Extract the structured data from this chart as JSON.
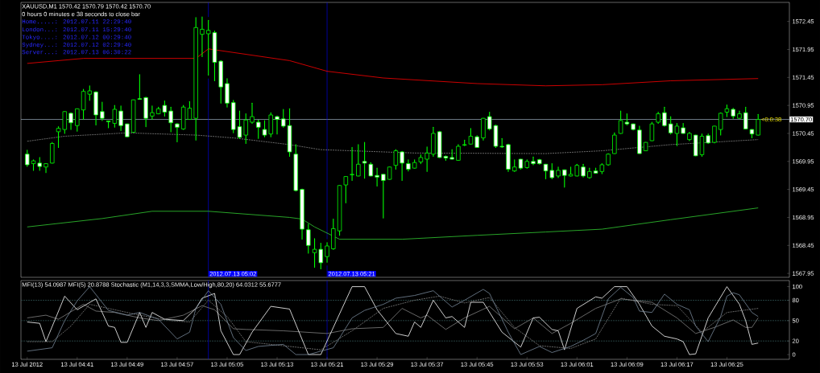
{
  "chart_data": [
    {
      "type": "candlestick",
      "title": "XAUUSD,M1  1570.42 1570.79 1570.42 1570.70",
      "subtitle": "0 hours 0 minutes e 38 seconds to close bar",
      "color": "#00ff00",
      "annotations": [
        "Home.....: 2012.07.11 22:29:40",
        "London...: 2012.07.11 15:29:40",
        "Tokyo....: 2012.07.12 00:29:40",
        "Sydney...: 2012.07.12 02:29:40",
        "Server...: 2012.07.13 06:30:22",
        {
          "text": "<0:0:38",
          "x": "2012-07-13T06:30",
          "y": 1570.7
        }
      ],
      "xlim": [
        "2012-07-13T04:32",
        "2012-07-13T06:35"
      ],
      "ylim": [
        1567.88,
        1572.79
      ],
      "yticks": [
        1567.95,
        1568.45,
        1568.95,
        1569.45,
        1569.95,
        1570.45,
        1570.95,
        1571.45,
        1571.95,
        1572.45
      ],
      "tick_labels": "y",
      "ref_lines": [
        {
          "axis": "y",
          "value": 1570.7,
          "label": "1570.70",
          "color": "#8c9bab"
        },
        {
          "axis": "x",
          "value": "2012-07-13T05:02",
          "label": "2012.07.13 05:02",
          "color": "#0000ff"
        },
        {
          "axis": "x",
          "value": "2012-07-13T05:21",
          "label": "2012.07.13 05:21",
          "color": "#0000ff"
        }
      ],
      "x": [
        "2012-07-13T04:33",
        "2012-07-13T04:34",
        "2012-07-13T04:35",
        "2012-07-13T04:36",
        "2012-07-13T04:37",
        "2012-07-13T04:38",
        "2012-07-13T04:39",
        "2012-07-13T04:40",
        "2012-07-13T04:41",
        "2012-07-13T04:42",
        "2012-07-13T04:43",
        "2012-07-13T04:44",
        "2012-07-13T04:45",
        "2012-07-13T04:46",
        "2012-07-13T04:47",
        "2012-07-13T04:48",
        "2012-07-13T04:49",
        "2012-07-13T04:50",
        "2012-07-13T04:51",
        "2012-07-13T04:52",
        "2012-07-13T04:53",
        "2012-07-13T04:54",
        "2012-07-13T04:55",
        "2012-07-13T04:56",
        "2012-07-13T04:57",
        "2012-07-13T04:58",
        "2012-07-13T04:59",
        "2012-07-13T05:00",
        "2012-07-13T05:01",
        "2012-07-13T05:02",
        "2012-07-13T05:03",
        "2012-07-13T05:04",
        "2012-07-13T05:05",
        "2012-07-13T05:06",
        "2012-07-13T05:07",
        "2012-07-13T05:08",
        "2012-07-13T05:09",
        "2012-07-13T05:10",
        "2012-07-13T05:11",
        "2012-07-13T05:12",
        "2012-07-13T05:13",
        "2012-07-13T05:14",
        "2012-07-13T05:15",
        "2012-07-13T05:16",
        "2012-07-13T05:17",
        "2012-07-13T05:18",
        "2012-07-13T05:19",
        "2012-07-13T05:20",
        "2012-07-13T05:21",
        "2012-07-13T05:22",
        "2012-07-13T05:23",
        "2012-07-13T05:24",
        "2012-07-13T05:25",
        "2012-07-13T05:26",
        "2012-07-13T05:27",
        "2012-07-13T05:28",
        "2012-07-13T05:29",
        "2012-07-13T05:30",
        "2012-07-13T05:31",
        "2012-07-13T05:32",
        "2012-07-13T05:33",
        "2012-07-13T05:34",
        "2012-07-13T05:35",
        "2012-07-13T05:36",
        "2012-07-13T05:37",
        "2012-07-13T05:38",
        "2012-07-13T05:39",
        "2012-07-13T05:40",
        "2012-07-13T05:41",
        "2012-07-13T05:42",
        "2012-07-13T05:43",
        "2012-07-13T05:44",
        "2012-07-13T05:45",
        "2012-07-13T05:46",
        "2012-07-13T05:47",
        "2012-07-13T05:48",
        "2012-07-13T05:49",
        "2012-07-13T05:50",
        "2012-07-13T05:51",
        "2012-07-13T05:52",
        "2012-07-13T05:53",
        "2012-07-13T05:54",
        "2012-07-13T05:55",
        "2012-07-13T05:56",
        "2012-07-13T05:57",
        "2012-07-13T05:58",
        "2012-07-13T05:59",
        "2012-07-13T06:00",
        "2012-07-13T06:01",
        "2012-07-13T06:02",
        "2012-07-13T06:03",
        "2012-07-13T06:04",
        "2012-07-13T06:05",
        "2012-07-13T06:06",
        "2012-07-13T06:07",
        "2012-07-13T06:08",
        "2012-07-13T06:09",
        "2012-07-13T06:10",
        "2012-07-13T06:11",
        "2012-07-13T06:12",
        "2012-07-13T06:13",
        "2012-07-13T06:14",
        "2012-07-13T06:15",
        "2012-07-13T06:16",
        "2012-07-13T06:17",
        "2012-07-13T06:18",
        "2012-07-13T06:19",
        "2012-07-13T06:20",
        "2012-07-13T06:21",
        "2012-07-13T06:22",
        "2012-07-13T06:23",
        "2012-07-13T06:24",
        "2012-07-13T06:25",
        "2012-07-13T06:26",
        "2012-07-13T06:27",
        "2012-07-13T06:28",
        "2012-07-13T06:29",
        "2012-07-13T06:30"
      ],
      "ohlc": [
        [
          1570.08,
          1570.15,
          1569.86,
          1569.89
        ],
        [
          1569.91,
          1569.98,
          1569.79,
          1569.96
        ],
        [
          1569.92,
          1570.02,
          1569.79,
          1569.86
        ],
        [
          1569.85,
          1569.91,
          1569.75,
          1569.91
        ],
        [
          1569.92,
          1570.29,
          1569.92,
          1570.27
        ],
        [
          1570.48,
          1570.57,
          1570.2,
          1570.54
        ],
        [
          1570.52,
          1570.84,
          1570.45,
          1570.84
        ],
        [
          1570.81,
          1570.82,
          1570.52,
          1570.64
        ],
        [
          1570.59,
          1570.89,
          1570.49,
          1570.89
        ],
        [
          1570.87,
          1571.24,
          1570.7,
          1571.2
        ],
        [
          1571.15,
          1571.3,
          1571.04,
          1571.21
        ],
        [
          1571.19,
          1571.2,
          1570.6,
          1570.78
        ],
        [
          1570.84,
          1571.01,
          1570.68,
          1570.72
        ],
        [
          1570.67,
          1570.67,
          1570.55,
          1570.66
        ],
        [
          1570.63,
          1570.95,
          1570.56,
          1570.88
        ],
        [
          1570.85,
          1570.94,
          1570.5,
          1570.59
        ],
        [
          1570.62,
          1570.62,
          1570.39,
          1570.39
        ],
        [
          1570.47,
          1571.05,
          1570.47,
          1571.05
        ],
        [
          1571.07,
          1571.5,
          1571.06,
          1571.06
        ],
        [
          1571.09,
          1571.1,
          1570.57,
          1570.72
        ],
        [
          1570.76,
          1570.94,
          1570.7,
          1570.82
        ],
        [
          1570.8,
          1570.92,
          1570.8,
          1570.89
        ],
        [
          1570.95,
          1571.03,
          1570.76,
          1570.83
        ],
        [
          1570.85,
          1570.92,
          1570.48,
          1570.64
        ],
        [
          1570.62,
          1570.63,
          1570.3,
          1570.56
        ],
        [
          1570.53,
          1570.95,
          1570.52,
          1570.92
        ],
        [
          1570.7,
          1571.02,
          1570.7,
          1570.9
        ],
        [
          1570.72,
          1572.52,
          1570.33,
          1572.34
        ],
        [
          1572.22,
          1572.53,
          1571.82,
          1572.31
        ],
        [
          1572.23,
          1572.47,
          1571.49,
          1572.29
        ],
        [
          1572.25,
          1572.28,
          1571.39,
          1571.72
        ],
        [
          1571.74,
          1571.75,
          1570.99,
          1571.28
        ],
        [
          1571.34,
          1571.43,
          1570.92,
          1570.99
        ],
        [
          1571.0,
          1571.04,
          1570.46,
          1570.52
        ],
        [
          1570.57,
          1570.85,
          1570.36,
          1570.38
        ],
        [
          1570.42,
          1570.8,
          1570.27,
          1570.69
        ],
        [
          1570.65,
          1570.99,
          1570.63,
          1570.75
        ],
        [
          1570.65,
          1570.69,
          1570.36,
          1570.56
        ],
        [
          1570.52,
          1570.68,
          1570.39,
          1570.42
        ],
        [
          1570.44,
          1570.82,
          1570.39,
          1570.78
        ],
        [
          1570.75,
          1570.76,
          1570.44,
          1570.7
        ],
        [
          1570.71,
          1570.88,
          1570.56,
          1570.58
        ],
        [
          1570.59,
          1570.89,
          1570.04,
          1570.12
        ],
        [
          1570.08,
          1570.25,
          1569.42,
          1569.43
        ],
        [
          1569.45,
          1569.46,
          1568.56,
          1568.74
        ],
        [
          1568.73,
          1568.83,
          1568.31,
          1568.45
        ],
        [
          1568.32,
          1568.57,
          1568.06,
          1568.38
        ],
        [
          1568.38,
          1568.49,
          1568.03,
          1568.14
        ],
        [
          1568.25,
          1568.5,
          1568.15,
          1568.44
        ],
        [
          1568.39,
          1568.92,
          1568.38,
          1568.75
        ],
        [
          1568.71,
          1569.52,
          1568.63,
          1569.52
        ],
        [
          1569.53,
          1569.68,
          1569.21,
          1569.68
        ],
        [
          1569.71,
          1570.2,
          1569.61,
          1569.72
        ],
        [
          1569.69,
          1570.25,
          1569.69,
          1569.9
        ],
        [
          1569.95,
          1570.29,
          1569.65,
          1569.92
        ],
        [
          1569.9,
          1569.93,
          1569.69,
          1569.69
        ],
        [
          1569.7,
          1569.83,
          1569.51,
          1569.67
        ],
        [
          1569.72,
          1569.72,
          1568.94,
          1569.61
        ],
        [
          1569.63,
          1569.85,
          1569.63,
          1569.85
        ],
        [
          1569.88,
          1570.16,
          1569.81,
          1570.14
        ],
        [
          1570.12,
          1570.13,
          1569.61,
          1569.92
        ],
        [
          1569.91,
          1569.98,
          1569.78,
          1569.81
        ],
        [
          1569.83,
          1569.98,
          1569.83,
          1569.93
        ],
        [
          1569.94,
          1570.07,
          1569.91,
          1570.02
        ],
        [
          1569.99,
          1570.21,
          1569.77,
          1570.1
        ],
        [
          1570.08,
          1570.56,
          1570.04,
          1570.45
        ],
        [
          1570.48,
          1570.49,
          1570.02,
          1570.02
        ],
        [
          1570.04,
          1570.05,
          1569.97,
          1570.01
        ],
        [
          1570.02,
          1570.16,
          1569.99,
          1569.99
        ],
        [
          1569.97,
          1570.25,
          1569.97,
          1570.22
        ],
        [
          1570.24,
          1570.33,
          1570.23,
          1570.25
        ],
        [
          1570.26,
          1570.54,
          1570.26,
          1570.4
        ],
        [
          1570.39,
          1570.41,
          1570.2,
          1570.2
        ],
        [
          1570.37,
          1570.72,
          1570.33,
          1570.72
        ],
        [
          1570.75,
          1570.83,
          1570.51,
          1570.53
        ],
        [
          1570.59,
          1570.6,
          1570.2,
          1570.22
        ],
        [
          1570.22,
          1570.36,
          1570.2,
          1570.21
        ],
        [
          1570.25,
          1570.26,
          1569.77,
          1569.81
        ],
        [
          1569.78,
          1569.98,
          1569.77,
          1569.85
        ],
        [
          1569.99,
          1569.99,
          1569.81,
          1569.83
        ],
        [
          1569.84,
          1569.98,
          1569.83,
          1569.95
        ],
        [
          1569.95,
          1570.03,
          1569.89,
          1569.91
        ],
        [
          1569.98,
          1569.99,
          1569.9,
          1569.91
        ],
        [
          1569.9,
          1569.9,
          1569.64,
          1569.78
        ],
        [
          1569.79,
          1569.91,
          1569.64,
          1569.66
        ],
        [
          1569.69,
          1569.85,
          1569.66,
          1569.79
        ],
        [
          1569.8,
          1569.8,
          1569.49,
          1569.7
        ],
        [
          1569.69,
          1569.85,
          1569.69,
          1569.72
        ],
        [
          1569.69,
          1569.9,
          1569.69,
          1569.88
        ],
        [
          1569.85,
          1569.9,
          1569.67,
          1569.69
        ],
        [
          1569.66,
          1569.83,
          1569.65,
          1569.77
        ],
        [
          1569.78,
          1569.83,
          1569.74,
          1569.74
        ],
        [
          1569.77,
          1569.91,
          1569.73,
          1569.89
        ],
        [
          1569.89,
          1570.09,
          1569.88,
          1570.08
        ],
        [
          1570.09,
          1570.46,
          1570.09,
          1570.42
        ],
        [
          1570.45,
          1570.85,
          1570.45,
          1570.68
        ],
        [
          1570.65,
          1570.8,
          1570.6,
          1570.62
        ],
        [
          1570.62,
          1570.62,
          1570.51,
          1570.52
        ],
        [
          1570.51,
          1570.58,
          1570.09,
          1570.09
        ],
        [
          1570.14,
          1570.29,
          1570.14,
          1570.29
        ],
        [
          1570.32,
          1570.65,
          1570.32,
          1570.62
        ],
        [
          1570.65,
          1570.83,
          1570.63,
          1570.8
        ],
        [
          1570.82,
          1570.92,
          1570.58,
          1570.59
        ],
        [
          1570.62,
          1570.75,
          1570.44,
          1570.46
        ],
        [
          1570.45,
          1570.63,
          1570.23,
          1570.58
        ],
        [
          1570.55,
          1570.63,
          1570.45,
          1570.45
        ],
        [
          1570.34,
          1570.47,
          1570.32,
          1570.45
        ],
        [
          1570.42,
          1570.42,
          1570.05,
          1570.05
        ],
        [
          1570.07,
          1570.44,
          1570.04,
          1570.4
        ],
        [
          1570.41,
          1570.44,
          1570.27,
          1570.28
        ],
        [
          1570.29,
          1570.58,
          1570.28,
          1570.58
        ],
        [
          1570.52,
          1570.82,
          1570.42,
          1570.81
        ],
        [
          1570.83,
          1570.96,
          1570.75,
          1570.89
        ],
        [
          1570.88,
          1570.9,
          1570.72,
          1570.76
        ],
        [
          1570.72,
          1570.85,
          1570.72,
          1570.8
        ],
        [
          1570.82,
          1570.92,
          1570.53,
          1570.53
        ],
        [
          1570.52,
          1570.52,
          1570.37,
          1570.44
        ],
        [
          1570.42,
          1570.79,
          1570.42,
          1570.7
        ]
      ],
      "series": [
        {
          "type": "line",
          "color": "#ff0000",
          "x": [
            "2012-07-13T04:33",
            "2012-07-13T04:42",
            "2012-07-13T05:00",
            "2012-07-13T05:02",
            "2012-07-13T05:15",
            "2012-07-13T05:21",
            "2012-07-13T05:30",
            "2012-07-13T05:45",
            "2012-07-13T05:56",
            "2012-07-13T06:05",
            "2012-07-13T06:16",
            "2012-07-13T06:30"
          ],
          "values": [
            1571.7,
            1571.79,
            1571.79,
            1571.96,
            1571.75,
            1571.56,
            1571.44,
            1571.34,
            1571.3,
            1571.32,
            1571.39,
            1571.43
          ]
        },
        {
          "type": "line",
          "color": "#32cd32",
          "x": [
            "2012-07-13T04:33",
            "2012-07-13T04:45",
            "2012-07-13T04:53",
            "2012-07-13T05:02",
            "2012-07-13T05:15",
            "2012-07-13T05:17",
            "2012-07-13T05:19",
            "2012-07-13T05:23",
            "2012-07-13T05:33",
            "2012-07-13T05:45",
            "2012-07-13T05:56",
            "2012-07-13T06:05",
            "2012-07-13T06:16",
            "2012-07-13T06:30"
          ],
          "values": [
            1568.78,
            1568.93,
            1569.06,
            1569.06,
            1568.95,
            1568.92,
            1568.78,
            1568.56,
            1568.56,
            1568.63,
            1568.69,
            1568.74,
            1568.91,
            1569.12
          ]
        },
        {
          "type": "line",
          "color": "#808080",
          "line_style": "dashed",
          "x": [
            "2012-07-13T04:33",
            "2012-07-13T04:39",
            "2012-07-13T04:49",
            "2012-07-13T05:00",
            "2012-07-13T05:06",
            "2012-07-13T05:15",
            "2012-07-13T05:20",
            "2012-07-13T05:35",
            "2012-07-13T05:56",
            "2012-07-13T06:05",
            "2012-07-13T06:16",
            "2012-07-13T06:30"
          ],
          "values": [
            1570.31,
            1570.4,
            1570.46,
            1570.42,
            1570.37,
            1570.25,
            1570.16,
            1570.1,
            1570.09,
            1570.14,
            1570.25,
            1570.34
          ]
        }
      ]
    },
    {
      "type": "line",
      "title": "MFI(13) 54.0987 MFI(5) 20.8788  Stochastic (M1,14,3,3,SMMA,Low/High,80,20) 64.0312 55.6777",
      "xlim": [
        "2012-07-13T04:32",
        "2012-07-13T06:35"
      ],
      "ylim": [
        -7,
        109
      ],
      "yticks": [
        0,
        20,
        50,
        80,
        100
      ],
      "xticks": [
        {
          "value": "2012-07-13T04:33",
          "label": "13 Jul 2012"
        },
        {
          "value": "2012-07-13T04:41",
          "label": "13 Jul 04:41"
        },
        {
          "value": "2012-07-13T04:49",
          "label": "13 Jul 04:49"
        },
        {
          "value": "2012-07-13T04:57",
          "label": "13 Jul 04:57"
        },
        {
          "value": "2012-07-13T05:05",
          "label": "13 Jul 05:05"
        },
        {
          "value": "2012-07-13T05:13",
          "label": "13 Jul 05:13"
        },
        {
          "value": "2012-07-13T05:21",
          "label": "13 Jul 05:21"
        },
        {
          "value": "2012-07-13T05:29",
          "label": "13 Jul 05:29"
        },
        {
          "value": "2012-07-13T05:37",
          "label": "13 Jul 05:37"
        },
        {
          "value": "2012-07-13T05:45",
          "label": "13 Jul 05:45"
        },
        {
          "value": "2012-07-13T05:53",
          "label": "13 Jul 05:53"
        },
        {
          "value": "2012-07-13T06:01",
          "label": "13 Jul 06:01"
        },
        {
          "value": "2012-07-13T06:09",
          "label": "13 Jul 06:09"
        },
        {
          "value": "2012-07-13T06:17",
          "label": "13 Jul 06:17"
        },
        {
          "value": "2012-07-13T06:25",
          "label": "13 Jul 06:25"
        }
      ],
      "ref_lines": [
        {
          "axis": "y",
          "value": 20,
          "color": "#2f4f4f",
          "line_style": "dashed"
        },
        {
          "axis": "y",
          "value": 50,
          "color": "#2f4f4f",
          "line_style": "dashed"
        },
        {
          "axis": "y",
          "value": 80,
          "color": "#2f4f4f",
          "line_style": "dashed"
        },
        {
          "axis": "x",
          "value": "2012-07-13T05:02",
          "color": "#0000ff"
        },
        {
          "axis": "x",
          "value": "2012-07-13T05:21",
          "color": "#0000ff"
        }
      ],
      "series": [
        {
          "color": "#808080",
          "x": [
            "2012-07-13T04:33",
            "2012-07-13T04:36",
            "2012-07-13T04:38",
            "2012-07-13T04:42",
            "2012-07-13T04:44",
            "2012-07-13T04:47",
            "2012-07-13T04:51",
            "2012-07-13T04:54",
            "2012-07-13T04:58",
            "2012-07-13T05:01",
            "2012-07-13T05:03",
            "2012-07-13T05:06",
            "2012-07-13T05:08",
            "2012-07-13T05:14",
            "2012-07-13T05:21",
            "2012-07-13T05:25",
            "2012-07-13T05:30",
            "2012-07-13T05:33",
            "2012-07-13T05:36",
            "2012-07-13T05:37",
            "2012-07-13T05:40",
            "2012-07-13T05:43",
            "2012-07-13T05:47",
            "2012-07-13T05:51",
            "2012-07-13T05:54",
            "2012-07-13T05:57",
            "2012-07-13T06:00",
            "2012-07-13T06:04",
            "2012-07-13T06:08",
            "2012-07-13T06:13",
            "2012-07-13T06:17",
            "2012-07-13T06:20",
            "2012-07-13T06:23",
            "2012-07-13T06:26",
            "2012-07-13T06:28",
            "2012-07-13T06:29",
            "2012-07-13T06:30"
          ],
          "values": [
            54,
            58,
            52,
            74,
            64,
            62,
            54,
            50,
            58,
            72,
            66,
            38,
            37,
            35,
            31,
            38,
            40,
            68,
            54,
            58,
            37,
            54,
            71,
            38,
            54,
            31,
            46,
            68,
            82,
            77,
            54,
            31,
            40,
            51,
            40,
            40,
            54
          ]
        },
        {
          "color": "#ffffff",
          "x": [
            "2012-07-13T04:33",
            "2012-07-13T04:35",
            "2012-07-13T04:36",
            "2012-07-13T04:39",
            "2012-07-13T04:41",
            "2012-07-13T04:44",
            "2012-07-13T04:46",
            "2012-07-13T04:47",
            "2012-07-13T04:48",
            "2012-07-13T04:49",
            "2012-07-13T04:51",
            "2012-07-13T04:52",
            "2012-07-13T04:53",
            "2012-07-13T04:55",
            "2012-07-13T04:58",
            "2012-07-13T05:00",
            "2012-07-13T05:01",
            "2012-07-13T05:03",
            "2012-07-13T05:04",
            "2012-07-13T05:06",
            "2012-07-13T05:07",
            "2012-07-13T05:09",
            "2012-07-13T05:12",
            "2012-07-13T05:15",
            "2012-07-13T05:18",
            "2012-07-13T05:20",
            "2012-07-13T05:25",
            "2012-07-13T05:27",
            "2012-07-13T05:29",
            "2012-07-13T05:32",
            "2012-07-13T05:34",
            "2012-07-13T05:35",
            "2012-07-13T05:36",
            "2012-07-13T05:38",
            "2012-07-13T05:40",
            "2012-07-13T05:41",
            "2012-07-13T05:43",
            "2012-07-13T05:44",
            "2012-07-13T05:46",
            "2012-07-13T05:49",
            "2012-07-13T05:52",
            "2012-07-13T05:54",
            "2012-07-13T05:55",
            "2012-07-13T05:57",
            "2012-07-13T05:58",
            "2012-07-13T05:59",
            "2012-07-13T06:01",
            "2012-07-13T06:04",
            "2012-07-13T06:05",
            "2012-07-13T06:07",
            "2012-07-13T06:09",
            "2012-07-13T06:11",
            "2012-07-13T06:13",
            "2012-07-13T06:15",
            "2012-07-13T06:17",
            "2012-07-13T06:18",
            "2012-07-13T06:19",
            "2012-07-13T06:20",
            "2012-07-13T06:22",
            "2012-07-13T06:25",
            "2012-07-13T06:27",
            "2012-07-13T06:28",
            "2012-07-13T06:29",
            "2012-07-13T06:30"
          ],
          "values": [
            48,
            46,
            19,
            86,
            66,
            82,
            42,
            40,
            18,
            18,
            62,
            40,
            62,
            52,
            50,
            68,
            83,
            90,
            35,
            0,
            0,
            33,
            71,
            67,
            0,
            0,
            100,
            100,
            66,
            31,
            27,
            48,
            40,
            80,
            54,
            56,
            40,
            77,
            77,
            33,
            11,
            54,
            55,
            37,
            35,
            7,
            68,
            85,
            83,
            100,
            100,
            74,
            42,
            27,
            23,
            19,
            0,
            1,
            54,
            100,
            74,
            50,
            15,
            17
          ]
        },
        {
          "color": "#808080",
          "line_style": "dashed",
          "x": [
            "2012-07-13T04:33",
            "2012-07-13T04:37",
            "2012-07-13T04:40",
            "2012-07-13T04:43",
            "2012-07-13T04:46",
            "2012-07-13T04:51",
            "2012-07-13T04:56",
            "2012-07-13T04:59",
            "2012-07-13T05:02",
            "2012-07-13T05:05",
            "2012-07-13T05:08",
            "2012-07-13T05:14",
            "2012-07-13T05:20",
            "2012-07-13T05:25",
            "2012-07-13T05:30",
            "2012-07-13T05:35",
            "2012-07-13T05:39",
            "2012-07-13T05:43",
            "2012-07-13T05:47",
            "2012-07-13T05:51",
            "2012-07-13T05:55",
            "2012-07-13T06:00",
            "2012-07-13T06:04",
            "2012-07-13T06:08",
            "2012-07-13T06:13",
            "2012-07-13T06:17",
            "2012-07-13T06:21",
            "2012-07-13T06:25",
            "2012-07-13T06:30"
          ],
          "values": [
            19,
            19,
            42,
            74,
            68,
            58,
            50,
            48,
            80,
            56,
            19,
            13,
            7,
            35,
            68,
            80,
            86,
            76,
            84,
            40,
            13,
            9,
            23,
            83,
            74,
            72,
            33,
            62,
            68
          ]
        },
        {
          "color": "#778899",
          "x": [
            "2012-07-13T04:33",
            "2012-07-13T04:37",
            "2012-07-13T04:39",
            "2012-07-13T04:41",
            "2012-07-13T04:43",
            "2012-07-13T04:46",
            "2012-07-13T04:49",
            "2012-07-13T04:51",
            "2012-07-13T04:54",
            "2012-07-13T04:57",
            "2012-07-13T04:59",
            "2012-07-13T05:00",
            "2012-07-13T05:02",
            "2012-07-13T05:04",
            "2012-07-13T05:06",
            "2012-07-13T05:08",
            "2012-07-13T05:10",
            "2012-07-13T05:14",
            "2012-07-13T05:16",
            "2012-07-13T05:18",
            "2012-07-13T05:20",
            "2012-07-13T05:22",
            "2012-07-13T05:25",
            "2012-07-13T05:27",
            "2012-07-13T05:30",
            "2012-07-13T05:32",
            "2012-07-13T05:35",
            "2012-07-13T05:38",
            "2012-07-13T05:41",
            "2012-07-13T05:43",
            "2012-07-13T05:46",
            "2012-07-13T05:47",
            "2012-07-13T05:50",
            "2012-07-13T05:52",
            "2012-07-13T05:55",
            "2012-07-13T05:57",
            "2012-07-13T06:00",
            "2012-07-13T06:02",
            "2012-07-13T06:04",
            "2012-07-13T06:06",
            "2012-07-13T06:08",
            "2012-07-13T06:10",
            "2012-07-13T06:11",
            "2012-07-13T06:13",
            "2012-07-13T06:15",
            "2012-07-13T06:17",
            "2012-07-13T06:19",
            "2012-07-13T06:20",
            "2012-07-13T06:22",
            "2012-07-13T06:24",
            "2012-07-13T06:25",
            "2012-07-13T06:26",
            "2012-07-13T06:27",
            "2012-07-13T06:29",
            "2012-07-13T06:30"
          ],
          "values": [
            5,
            10,
            50,
            79,
            100,
            65,
            58,
            62,
            52,
            23,
            33,
            68,
            94,
            74,
            25,
            6,
            12,
            15,
            0,
            0,
            5,
            10,
            54,
            65,
            74,
            83,
            87,
            94,
            70,
            80,
            96,
            90,
            33,
            0,
            12,
            3,
            12,
            21,
            31,
            82,
            99,
            84,
            64,
            62,
            89,
            74,
            66,
            42,
            19,
            56,
            86,
            91,
            88,
            62,
            56
          ]
        }
      ]
    }
  ]
}
